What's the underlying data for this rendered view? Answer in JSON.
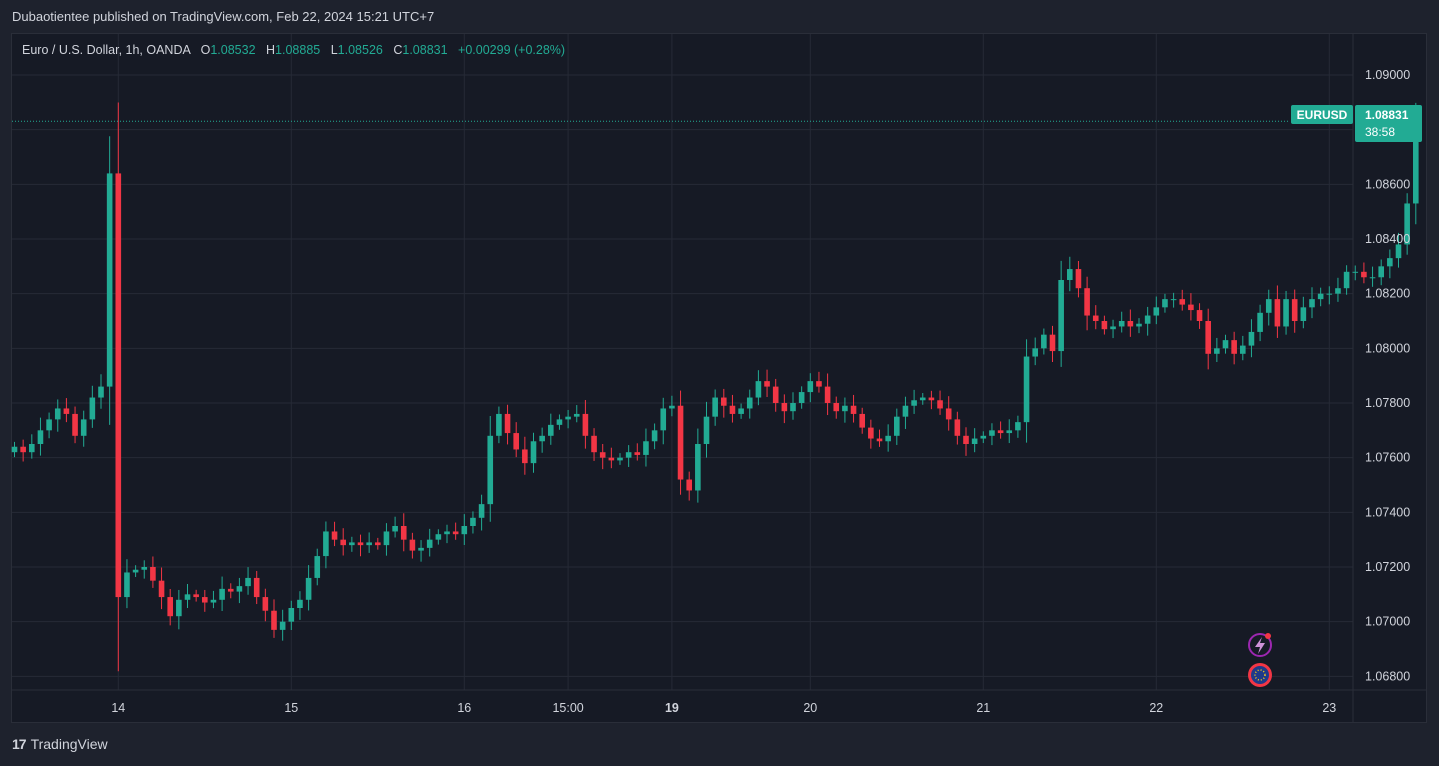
{
  "header": {
    "published_text": "Dubaotientee published on TradingView.com, Feb 22, 2024 15:21 UTC+7"
  },
  "legend": {
    "symbol": "Euro / U.S. Dollar, 1h, OANDA",
    "o_label": "O",
    "o_value": "1.08532",
    "h_label": "H",
    "h_value": "1.08885",
    "l_label": "L",
    "l_value": "1.08526",
    "c_label": "C",
    "c_value": "1.08831",
    "change": "+0.00299 (+0.28%)"
  },
  "price_badge": {
    "ticker": "EURUSD",
    "price": "1.08831",
    "countdown": "38:58"
  },
  "footer": {
    "brand": "TradingView",
    "logo_text": "17"
  },
  "colors": {
    "up": "#22ab94",
    "down": "#f23645",
    "grid": "#262a36",
    "text": "#d1d4dc"
  },
  "chart_data": {
    "type": "candlestick",
    "symbol": "EURUSD",
    "timeframe": "1h",
    "ylim": [
      1.0675,
      1.0915
    ],
    "y_ticks": [
      "1.09000",
      "1.08800",
      "1.08600",
      "1.08400",
      "1.08200",
      "1.08000",
      "1.07800",
      "1.07600",
      "1.07400",
      "1.07200",
      "1.07000",
      "1.06800"
    ],
    "x_ticks": [
      {
        "label": "14",
        "index": 12,
        "bold": false
      },
      {
        "label": "15",
        "index": 32,
        "bold": false
      },
      {
        "label": "16",
        "index": 52,
        "bold": false
      },
      {
        "label": "15:00",
        "index": 64,
        "bold": false
      },
      {
        "label": "19",
        "index": 76,
        "bold": true
      },
      {
        "label": "20",
        "index": 92,
        "bold": false
      },
      {
        "label": "21",
        "index": 112,
        "bold": false
      },
      {
        "label": "22",
        "index": 132,
        "bold": false
      },
      {
        "label": "23",
        "index": 152,
        "bold": false
      }
    ],
    "last_price": 1.08831,
    "closes": [
      1.0764,
      1.0762,
      1.0765,
      1.077,
      1.0774,
      1.0778,
      1.0776,
      1.0768,
      1.0774,
      1.0782,
      1.0786,
      1.0864,
      1.0709,
      1.0718,
      1.0719,
      1.072,
      1.0715,
      1.0709,
      1.0702,
      1.0708,
      1.071,
      1.0709,
      1.0707,
      1.0708,
      1.0712,
      1.0711,
      1.0713,
      1.0716,
      1.0709,
      1.0704,
      1.0697,
      1.07,
      1.0705,
      1.0708,
      1.0716,
      1.0724,
      1.0733,
      1.073,
      1.0728,
      1.0729,
      1.0728,
      1.0729,
      1.0728,
      1.0733,
      1.0735,
      1.073,
      1.0726,
      1.0727,
      1.073,
      1.0732,
      1.0733,
      1.0732,
      1.0735,
      1.0738,
      1.0743,
      1.0768,
      1.0776,
      1.0769,
      1.0763,
      1.0758,
      1.0766,
      1.0768,
      1.0772,
      1.0774,
      1.0775,
      1.0776,
      1.0768,
      1.0762,
      1.076,
      1.0759,
      1.076,
      1.0762,
      1.0761,
      1.0766,
      1.077,
      1.0778,
      1.0779,
      1.0752,
      1.0748,
      1.0765,
      1.0775,
      1.0782,
      1.0779,
      1.0776,
      1.0778,
      1.0782,
      1.0788,
      1.0786,
      1.078,
      1.0777,
      1.078,
      1.0784,
      1.0788,
      1.0786,
      1.078,
      1.0777,
      1.0779,
      1.0776,
      1.0771,
      1.0767,
      1.0766,
      1.0768,
      1.0775,
      1.0779,
      1.0781,
      1.0782,
      1.0781,
      1.0778,
      1.0774,
      1.0768,
      1.0765,
      1.0767,
      1.0768,
      1.077,
      1.0769,
      1.077,
      1.0773,
      1.0797,
      1.08,
      1.0805,
      1.0799,
      1.0825,
      1.0829,
      1.0822,
      1.0812,
      1.081,
      1.0807,
      1.0808,
      1.081,
      1.0808,
      1.0809,
      1.0812,
      1.0815,
      1.0818,
      1.0818,
      1.0816,
      1.0814,
      1.081,
      1.0798,
      1.08,
      1.0803,
      1.0798,
      1.0801,
      1.0806,
      1.0813,
      1.0818,
      1.0808,
      1.0818,
      1.081,
      1.0815,
      1.0818,
      1.082,
      1.082,
      1.0822,
      1.0828,
      1.0828,
      1.0826,
      1.0826,
      1.083,
      1.0833,
      1.0838,
      1.0853,
      1.0883
    ]
  }
}
